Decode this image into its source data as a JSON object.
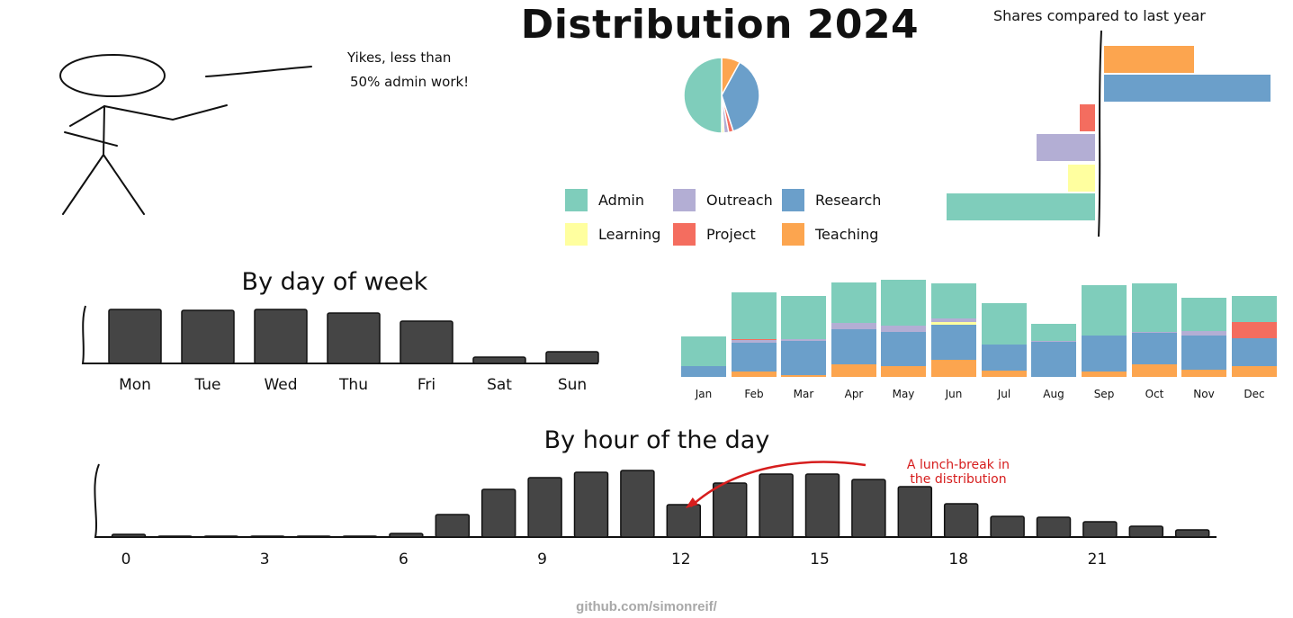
{
  "title": "Distribution 2024",
  "stick_figure_note": [
    "Yikes, less than",
    "50% admin work!"
  ],
  "credit": "github.com/simonreif/",
  "colors": {
    "Admin": "#7fcdbb",
    "Outreach": "#b3aed4",
    "Research": "#6b9fca",
    "Learning": "#ffff9f",
    "Project": "#f46d5f",
    "Teaching": "#fca54f",
    "bar": "#454545"
  },
  "legend": [
    {
      "label": "Admin",
      "color": "#7fcdbb"
    },
    {
      "label": "Outreach",
      "color": "#b3aed4"
    },
    {
      "label": "Research",
      "color": "#6b9fca"
    },
    {
      "label": "Learning",
      "color": "#ffff9f"
    },
    {
      "label": "Project",
      "color": "#f46d5f"
    },
    {
      "label": "Teaching",
      "color": "#fca54f"
    }
  ],
  "chart_data": [
    {
      "type": "pie",
      "slices": [
        {
          "label": "Teaching",
          "value": 8
        },
        {
          "label": "Research",
          "value": 37
        },
        {
          "label": "Project",
          "value": 2
        },
        {
          "label": "Outreach",
          "value": 2
        },
        {
          "label": "Learning",
          "value": 1
        },
        {
          "label": "Admin",
          "value": 50
        }
      ]
    },
    {
      "type": "bar",
      "orientation": "horizontal",
      "title": "Shares compared to last year",
      "categories": [
        "Teaching",
        "Research",
        "Project",
        "Outreach",
        "Learning",
        "Admin"
      ],
      "values": [
        10,
        18.5,
        -1.7,
        -6.5,
        -3,
        -16.5
      ]
    },
    {
      "type": "bar",
      "title": "By day of week",
      "categories": [
        "Mon",
        "Tue",
        "Wed",
        "Thu",
        "Fri",
        "Sat",
        "Sun"
      ],
      "values": [
        60,
        59,
        60,
        56,
        47,
        7,
        13
      ]
    },
    {
      "type": "bar",
      "stacked": true,
      "categories": [
        "Jan",
        "Feb",
        "Mar",
        "Apr",
        "May",
        "Jun",
        "Jul",
        "Aug",
        "Sep",
        "Oct",
        "Nov",
        "Dec"
      ],
      "series": [
        {
          "name": "Teaching",
          "values": [
            0,
            6,
            2,
            14,
            12,
            19,
            7,
            0,
            6,
            14,
            8,
            12
          ]
        },
        {
          "name": "Research",
          "values": [
            12,
            32,
            38,
            39,
            38,
            39,
            29,
            39,
            40,
            35,
            38,
            31
          ]
        },
        {
          "name": "Learning",
          "values": [
            0,
            0,
            0,
            0,
            0,
            3,
            0,
            0,
            0,
            0,
            0,
            0
          ]
        },
        {
          "name": "Outreach",
          "values": [
            0,
            3,
            2,
            7,
            7,
            4,
            0,
            1,
            0,
            1,
            5,
            0
          ]
        },
        {
          "name": "Project",
          "values": [
            0,
            1,
            0,
            0,
            0,
            0,
            0,
            0,
            0,
            0,
            0,
            18
          ]
        },
        {
          "name": "Admin",
          "values": [
            33,
            52,
            48,
            45,
            51,
            39,
            46,
            19,
            56,
            54,
            37,
            29
          ]
        }
      ]
    },
    {
      "type": "bar",
      "title": "By hour of the day",
      "categories": [
        "0",
        "1",
        "2",
        "3",
        "4",
        "5",
        "6",
        "7",
        "8",
        "9",
        "10",
        "11",
        "12",
        "13",
        "14",
        "15",
        "16",
        "17",
        "18",
        "19",
        "20",
        "21",
        "22",
        "23"
      ],
      "x_ticks": [
        "0",
        "3",
        "6",
        "9",
        "12",
        "15",
        "18",
        "21"
      ],
      "values": [
        3,
        1,
        1,
        1,
        1,
        1,
        4,
        25,
        53,
        66,
        72,
        74,
        36,
        60,
        70,
        70,
        64,
        56,
        37,
        23,
        22,
        17,
        12,
        8
      ],
      "annotation": {
        "text": [
          "A lunch-break in",
          "the distribution"
        ],
        "points_to": "12"
      }
    }
  ]
}
